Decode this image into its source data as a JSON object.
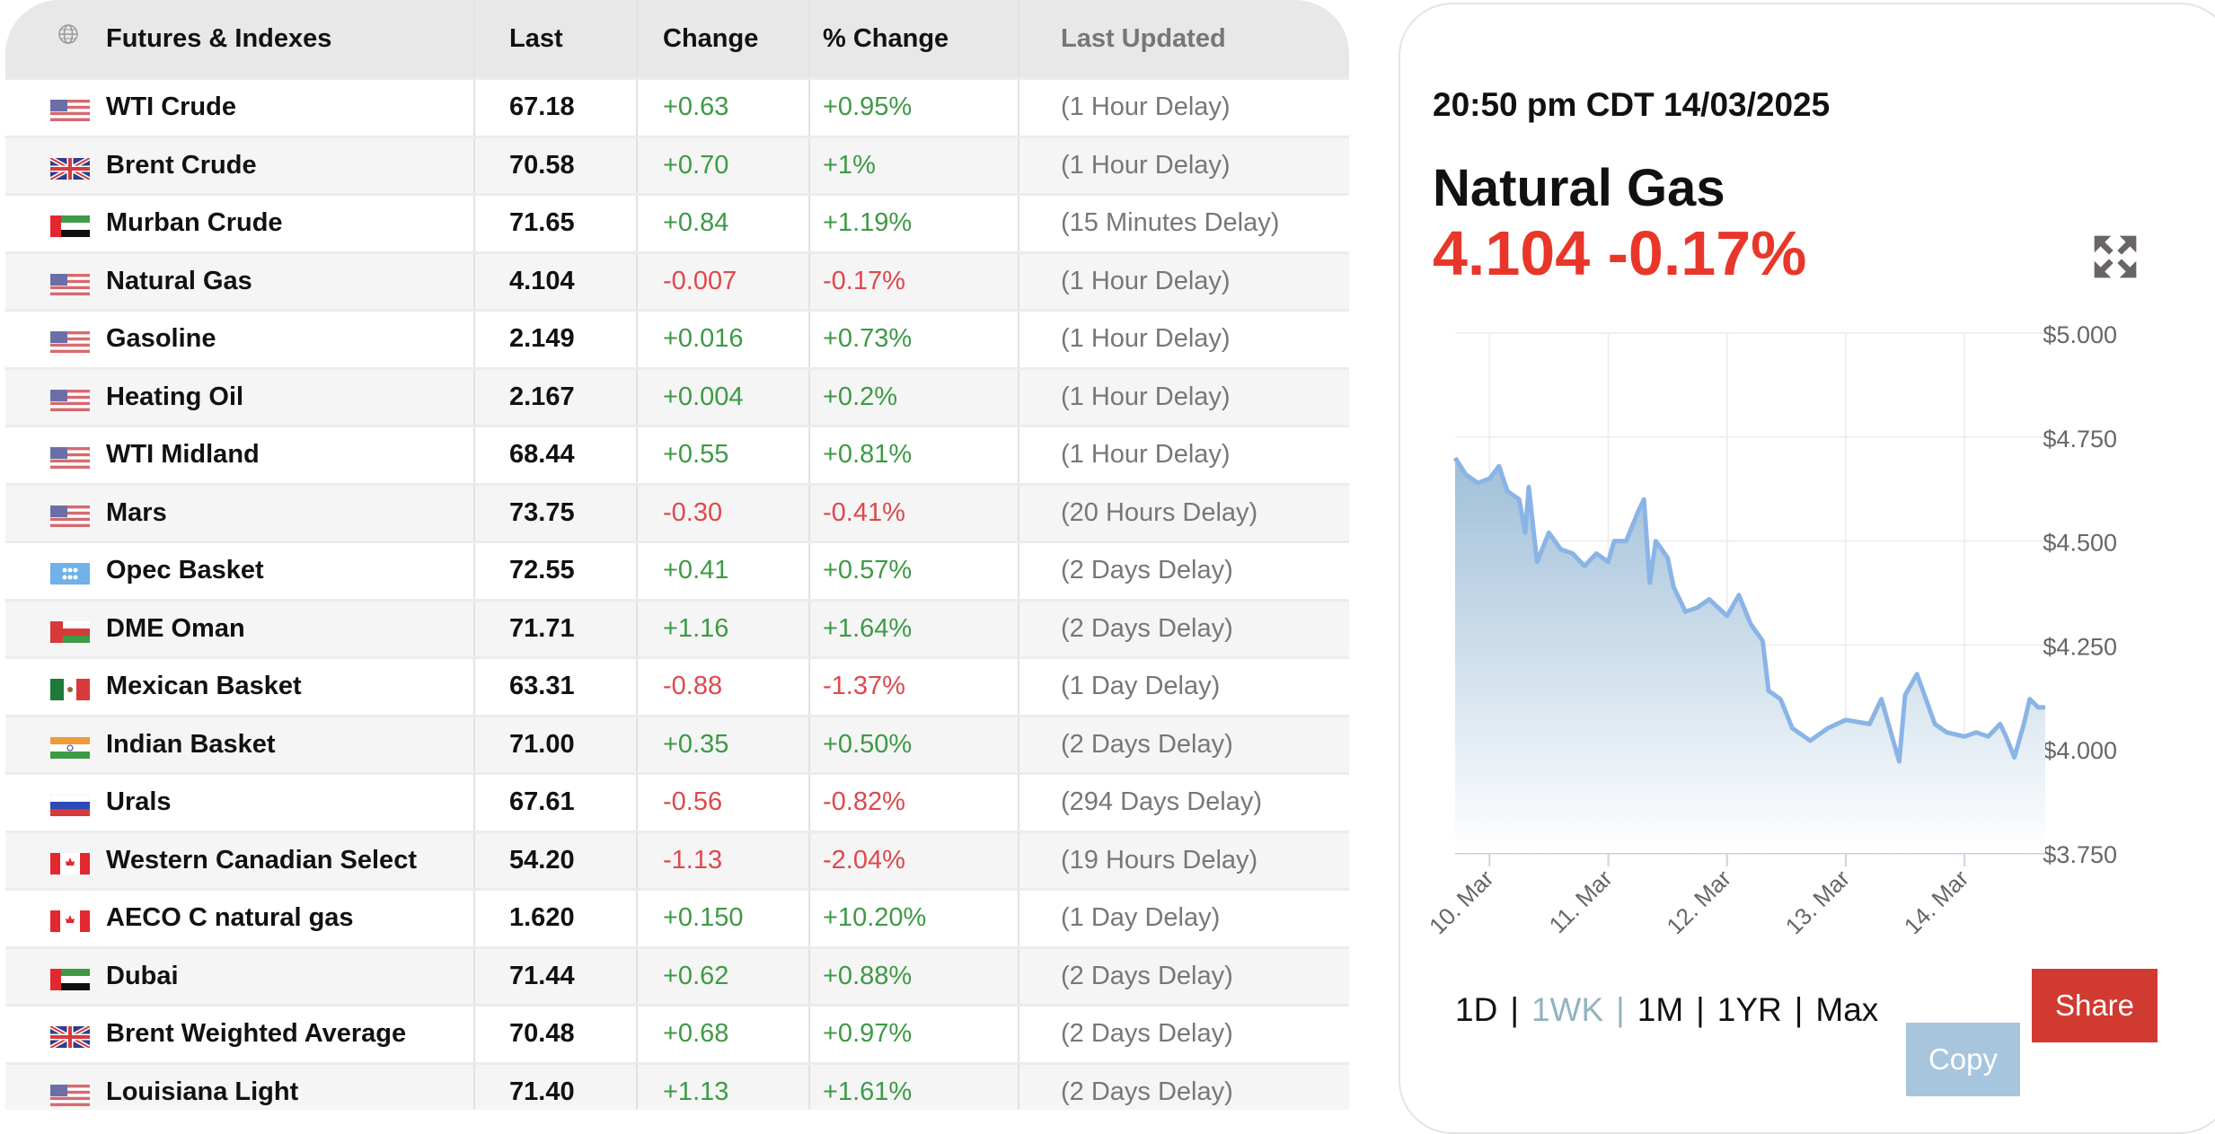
{
  "table": {
    "headers": {
      "name": "Futures & Indexes",
      "last": "Last",
      "change": "Change",
      "pct": "% Change",
      "updated": "Last Updated"
    },
    "rows": [
      {
        "flag": "us",
        "name": "WTI Crude",
        "last": "67.18",
        "change": "+0.63",
        "pct": "+0.95%",
        "updated": "(1 Hour Delay)",
        "dir": "pos"
      },
      {
        "flag": "gb",
        "name": "Brent Crude",
        "last": "70.58",
        "change": "+0.70",
        "pct": "+1%",
        "updated": "(1 Hour Delay)",
        "dir": "pos"
      },
      {
        "flag": "ae",
        "name": "Murban Crude",
        "last": "71.65",
        "change": "+0.84",
        "pct": "+1.19%",
        "updated": "(15 Minutes Delay)",
        "dir": "pos"
      },
      {
        "flag": "us",
        "name": "Natural Gas",
        "last": "4.104",
        "change": "-0.007",
        "pct": "-0.17%",
        "updated": "(1 Hour Delay)",
        "dir": "neg"
      },
      {
        "flag": "us",
        "name": "Gasoline",
        "last": "2.149",
        "change": "+0.016",
        "pct": "+0.73%",
        "updated": "(1 Hour Delay)",
        "dir": "pos"
      },
      {
        "flag": "us",
        "name": "Heating Oil",
        "last": "2.167",
        "change": "+0.004",
        "pct": "+0.2%",
        "updated": "(1 Hour Delay)",
        "dir": "pos"
      },
      {
        "flag": "us",
        "name": "WTI Midland",
        "last": "68.44",
        "change": "+0.55",
        "pct": "+0.81%",
        "updated": "(1 Hour Delay)",
        "dir": "pos"
      },
      {
        "flag": "us",
        "name": "Mars",
        "last": "73.75",
        "change": "-0.30",
        "pct": "-0.41%",
        "updated": "(20 Hours Delay)",
        "dir": "neg"
      },
      {
        "flag": "opec",
        "name": "Opec Basket",
        "last": "72.55",
        "change": "+0.41",
        "pct": "+0.57%",
        "updated": "(2 Days Delay)",
        "dir": "pos"
      },
      {
        "flag": "om",
        "name": "DME Oman",
        "last": "71.71",
        "change": "+1.16",
        "pct": "+1.64%",
        "updated": "(2 Days Delay)",
        "dir": "pos"
      },
      {
        "flag": "mx",
        "name": "Mexican Basket",
        "last": "63.31",
        "change": "-0.88",
        "pct": "-1.37%",
        "updated": "(1 Day Delay)",
        "dir": "neg"
      },
      {
        "flag": "in",
        "name": "Indian Basket",
        "last": "71.00",
        "change": "+0.35",
        "pct": "+0.50%",
        "updated": "(2 Days Delay)",
        "dir": "pos"
      },
      {
        "flag": "ru",
        "name": "Urals",
        "last": "67.61",
        "change": "-0.56",
        "pct": "-0.82%",
        "updated": "(294 Days Delay)",
        "dir": "neg"
      },
      {
        "flag": "ca",
        "name": "Western Canadian Select",
        "last": "54.20",
        "change": "-1.13",
        "pct": "-2.04%",
        "updated": "(19 Hours Delay)",
        "dir": "neg"
      },
      {
        "flag": "ca",
        "name": "AECO C natural gas",
        "last": "1.620",
        "change": "+0.150",
        "pct": "+10.20%",
        "updated": "(1 Day Delay)",
        "dir": "pos"
      },
      {
        "flag": "ae",
        "name": "Dubai",
        "last": "71.44",
        "change": "+0.62",
        "pct": "+0.88%",
        "updated": "(2 Days Delay)",
        "dir": "pos"
      },
      {
        "flag": "gb",
        "name": "Brent Weighted Average",
        "last": "70.48",
        "change": "+0.68",
        "pct": "+0.97%",
        "updated": "(2 Days Delay)",
        "dir": "pos"
      },
      {
        "flag": "us",
        "name": "Louisiana Light",
        "last": "71.40",
        "change": "+1.13",
        "pct": "+1.61%",
        "updated": "(2 Days Delay)",
        "dir": "pos"
      }
    ]
  },
  "panel": {
    "datetime": "20:50 pm CDT 14/03/2025",
    "title": "Natural Gas",
    "price": "4.104 -0.17%",
    "periods": [
      "1D",
      "1WK",
      "1M",
      "1YR",
      "Max"
    ],
    "active_period": "1WK",
    "share_label": "Share",
    "copy_label": "Copy"
  },
  "colors": {
    "positive": "#3d9a45",
    "negative": "#e0474c",
    "price": "#e8372a",
    "line": "#8ab4e6",
    "share": "#d13a31",
    "copy": "#a7c5dd"
  },
  "chart_data": {
    "type": "area",
    "title": "Natural Gas",
    "ylim": [
      3.75,
      5.0
    ],
    "xlim": [
      -0.29,
      4.68
    ],
    "yticks": [
      5.0,
      4.75,
      4.5,
      4.25,
      4.0,
      3.75
    ],
    "ytick_labels": [
      "$5.000",
      "$4.750",
      "$4.500",
      "$4.250",
      "$4.000",
      "$3.750"
    ],
    "xticks": [
      0,
      1,
      2,
      3,
      4
    ],
    "xtick_labels": [
      "10. Mar",
      "11. Mar",
      "12. Mar",
      "13. Mar",
      "14. Mar"
    ],
    "x_unit": "days since 10 Mar",
    "grid": true,
    "x": [
      -0.29,
      -0.2,
      -0.1,
      0.0,
      0.08,
      0.15,
      0.25,
      0.3,
      0.33,
      0.4,
      0.5,
      0.6,
      0.7,
      0.8,
      0.9,
      1.0,
      1.05,
      1.15,
      1.25,
      1.3,
      1.35,
      1.4,
      1.5,
      1.55,
      1.65,
      1.75,
      1.85,
      2.0,
      2.1,
      2.2,
      2.3,
      2.35,
      2.45,
      2.55,
      2.7,
      2.85,
      3.0,
      3.2,
      3.3,
      3.38,
      3.45,
      3.5,
      3.6,
      3.75,
      3.85,
      4.0,
      4.1,
      4.2,
      4.3,
      4.35,
      4.42,
      4.5,
      4.55,
      4.62,
      4.68
    ],
    "y": [
      4.7,
      4.66,
      4.64,
      4.65,
      4.68,
      4.62,
      4.6,
      4.52,
      4.63,
      4.45,
      4.52,
      4.48,
      4.47,
      4.44,
      4.47,
      4.45,
      4.5,
      4.5,
      4.57,
      4.6,
      4.4,
      4.5,
      4.46,
      4.39,
      4.33,
      4.34,
      4.36,
      4.32,
      4.37,
      4.3,
      4.26,
      4.14,
      4.12,
      4.05,
      4.02,
      4.05,
      4.07,
      4.06,
      4.12,
      4.04,
      3.97,
      4.13,
      4.18,
      4.06,
      4.04,
      4.03,
      4.04,
      4.03,
      4.06,
      4.03,
      3.98,
      4.06,
      4.12,
      4.1,
      4.1
    ]
  }
}
